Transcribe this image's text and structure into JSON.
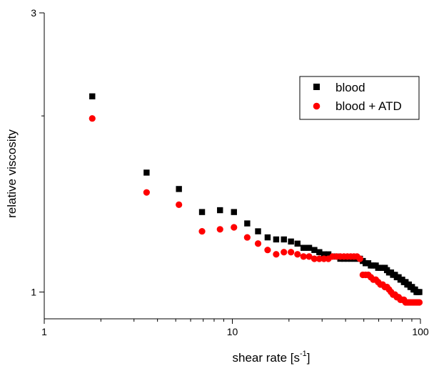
{
  "chart_data": {
    "type": "scatter",
    "title": "",
    "xlabel": "shear rate [s",
    "xlabel_superscript": "-1",
    "xlabel_suffix": "]",
    "ylabel": "relative viscosity",
    "x_scale": "log",
    "y_scale": "log",
    "xlim": [
      1,
      100
    ],
    "ylim": [
      0.9,
      3
    ],
    "x_ticks": [
      {
        "value": 1,
        "label": "1"
      },
      {
        "value": 10,
        "label": "10"
      },
      {
        "value": 100,
        "label": "100"
      }
    ],
    "y_ticks": [
      {
        "value": 1,
        "label": "1"
      },
      {
        "value": 3,
        "label": "3"
      }
    ],
    "grid": false,
    "legend": "top-right",
    "series": [
      {
        "name": "blood",
        "marker": "square",
        "color": "#000000",
        "points": [
          [
            1.8,
            2.16
          ],
          [
            3.5,
            1.6
          ],
          [
            5.2,
            1.5
          ],
          [
            6.9,
            1.37
          ],
          [
            8.6,
            1.38
          ],
          [
            10.2,
            1.37
          ],
          [
            12.0,
            1.31
          ],
          [
            13.7,
            1.27
          ],
          [
            15.4,
            1.24
          ],
          [
            17.1,
            1.23
          ],
          [
            18.8,
            1.23
          ],
          [
            20.5,
            1.22
          ],
          [
            22.2,
            1.21
          ],
          [
            23.9,
            1.19
          ],
          [
            25.6,
            1.19
          ],
          [
            27.3,
            1.18
          ],
          [
            29.0,
            1.17
          ],
          [
            30.7,
            1.16
          ],
          [
            32.4,
            1.16
          ],
          [
            34.1,
            1.15
          ],
          [
            35.8,
            1.15
          ],
          [
            37.5,
            1.14
          ],
          [
            39.2,
            1.14
          ],
          [
            40.9,
            1.14
          ],
          [
            42.6,
            1.14
          ],
          [
            44.3,
            1.14
          ],
          [
            46.0,
            1.14
          ],
          [
            47.7,
            1.14
          ],
          [
            49.4,
            1.13
          ],
          [
            51.1,
            1.12
          ],
          [
            52.8,
            1.12
          ],
          [
            54.5,
            1.11
          ],
          [
            56.2,
            1.11
          ],
          [
            57.9,
            1.11
          ],
          [
            59.6,
            1.1
          ],
          [
            61.3,
            1.1
          ],
          [
            63.0,
            1.1
          ],
          [
            64.7,
            1.1
          ],
          [
            66.4,
            1.09
          ],
          [
            68.1,
            1.08
          ],
          [
            69.8,
            1.08
          ],
          [
            71.5,
            1.07
          ],
          [
            73.2,
            1.07
          ],
          [
            74.9,
            1.06
          ],
          [
            76.6,
            1.06
          ],
          [
            78.3,
            1.05
          ],
          [
            80.0,
            1.05
          ],
          [
            81.7,
            1.04
          ],
          [
            83.4,
            1.04
          ],
          [
            85.1,
            1.03
          ],
          [
            86.8,
            1.03
          ],
          [
            88.5,
            1.02
          ],
          [
            90.2,
            1.02
          ],
          [
            91.9,
            1.01
          ],
          [
            93.6,
            1.01
          ],
          [
            95.3,
            1.0
          ],
          [
            97.0,
            1.0
          ],
          [
            98.7,
            1.0
          ]
        ]
      },
      {
        "name": "blood + ATD",
        "marker": "circle",
        "color": "#ff0000",
        "points": [
          [
            1.8,
            1.98
          ],
          [
            3.5,
            1.48
          ],
          [
            5.2,
            1.41
          ],
          [
            6.9,
            1.27
          ],
          [
            8.6,
            1.28
          ],
          [
            10.2,
            1.29
          ],
          [
            12.0,
            1.24
          ],
          [
            13.7,
            1.21
          ],
          [
            15.4,
            1.18
          ],
          [
            17.1,
            1.16
          ],
          [
            18.8,
            1.17
          ],
          [
            20.5,
            1.17
          ],
          [
            22.2,
            1.16
          ],
          [
            23.9,
            1.15
          ],
          [
            25.6,
            1.15
          ],
          [
            27.3,
            1.14
          ],
          [
            29.0,
            1.14
          ],
          [
            30.7,
            1.14
          ],
          [
            32.4,
            1.14
          ],
          [
            34.1,
            1.15
          ],
          [
            35.8,
            1.15
          ],
          [
            37.5,
            1.15
          ],
          [
            39.2,
            1.15
          ],
          [
            40.9,
            1.15
          ],
          [
            42.6,
            1.15
          ],
          [
            44.3,
            1.15
          ],
          [
            46.0,
            1.15
          ],
          [
            47.7,
            1.14
          ],
          [
            49.4,
            1.07
          ],
          [
            51.1,
            1.07
          ],
          [
            52.8,
            1.07
          ],
          [
            54.5,
            1.06
          ],
          [
            56.2,
            1.05
          ],
          [
            57.9,
            1.05
          ],
          [
            59.6,
            1.04
          ],
          [
            61.3,
            1.03
          ],
          [
            63.0,
            1.03
          ],
          [
            64.7,
            1.02
          ],
          [
            66.4,
            1.02
          ],
          [
            68.1,
            1.01
          ],
          [
            69.8,
            1.0
          ],
          [
            71.5,
            0.99
          ],
          [
            73.2,
            0.99
          ],
          [
            74.9,
            0.98
          ],
          [
            76.6,
            0.98
          ],
          [
            78.3,
            0.97
          ],
          [
            80.0,
            0.97
          ],
          [
            81.7,
            0.97
          ],
          [
            83.4,
            0.96
          ],
          [
            85.1,
            0.96
          ],
          [
            86.8,
            0.96
          ],
          [
            88.5,
            0.96
          ],
          [
            90.2,
            0.96
          ],
          [
            91.9,
            0.96
          ],
          [
            93.6,
            0.96
          ],
          [
            95.3,
            0.96
          ],
          [
            97.0,
            0.96
          ],
          [
            98.7,
            0.96
          ]
        ]
      }
    ]
  }
}
